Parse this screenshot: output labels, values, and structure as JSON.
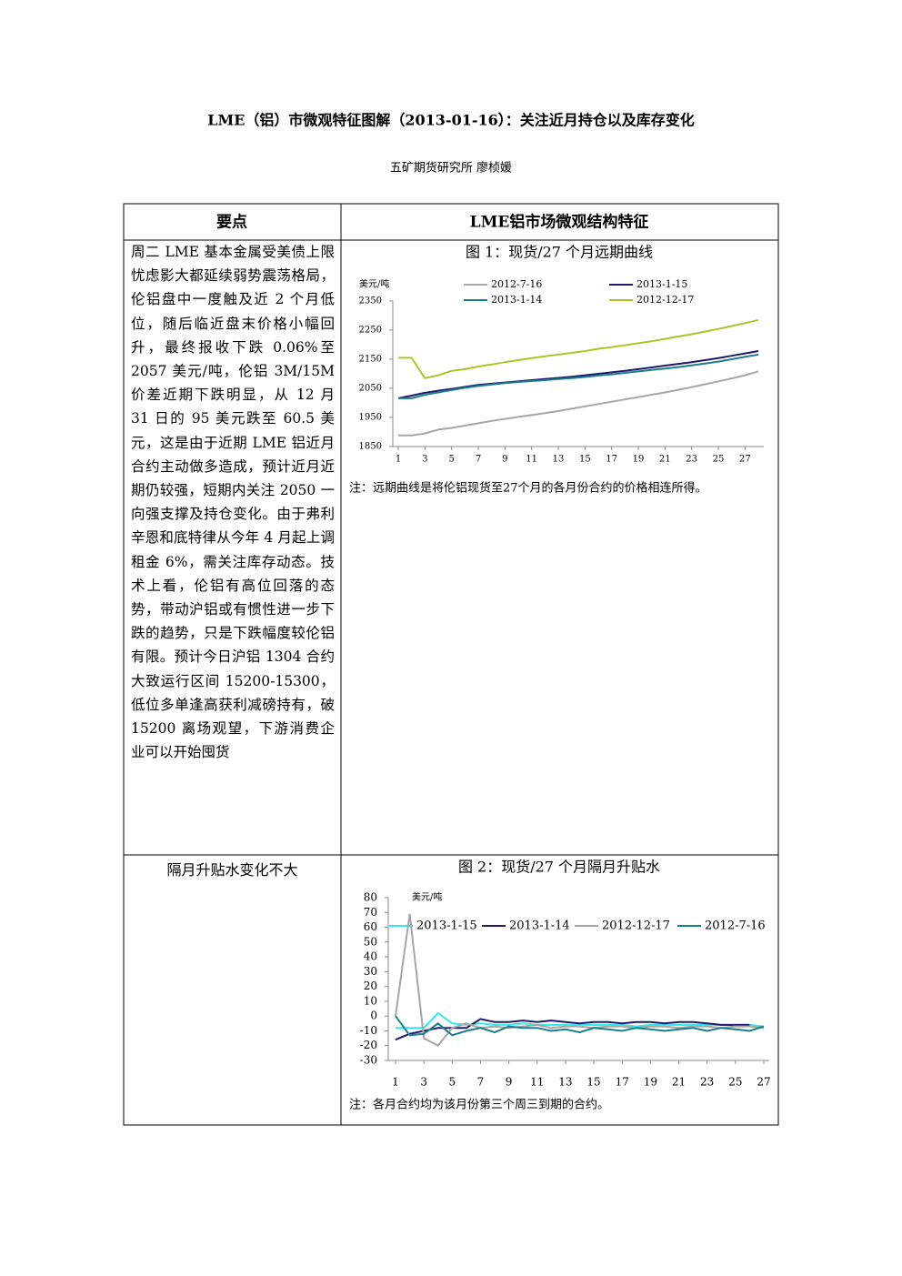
{
  "header": {
    "title": "LME（铝）市微观特征图解（2013-01-16）：关注近月持仓以及库存变化",
    "author": "五矿期货研究所  廖桢媛"
  },
  "table": {
    "headers": [
      "要点",
      "LME铝市场微观结构特征"
    ],
    "rows": [
      [
        "周二 LME 基本金属受美债上限忧虑影大都延续弱势震荡格局，伦铝盘中一度触及近 2 个月低位，随后临近盘末价格小幅回升，最终报收下跌 0.06%至 2057 美元/吨，伦铝 3M/15M 价差近期下跌明显，从 12 月 31 日的 95 美元跌至 60.5 美元，这是由于近期 LME 铝近月合约主动做多造成，预计近月近期仍较强，短期内关注 2050 一向强支撑及持仓变化。由于弗利辛恩和底特律从今年 4 月起上调租金 6%，需关注库存动态。技术上看，伦铝有高位回落的态势，带动沪铝或有惯性进一步下跌的趋势，只是下跌幅度较伦铝有限。预计今日沪铝 1304 合约大致运行区间 15200-15300，低位多单逢高获利减磅持有，破 15200 离场观望，下游消费企业可以开始囤货"
      ],
      [
        "隔月升贴水变化不大"
      ]
    ]
  },
  "chart_data": [
    {
      "type": "line",
      "title": "图 1：现货/27 个月远期曲线",
      "y_label": "美元/吨",
      "note": "注：远期曲线是将伦铝现货至27个月的各月份合约的价格相连所得。",
      "x": [
        1,
        2,
        3,
        4,
        5,
        6,
        7,
        8,
        9,
        10,
        11,
        12,
        13,
        14,
        15,
        16,
        17,
        18,
        19,
        20,
        21,
        22,
        23,
        24,
        25,
        26,
        27,
        28
      ],
      "xlim": [
        1,
        28
      ],
      "xticks": [
        1,
        3,
        5,
        7,
        9,
        11,
        13,
        15,
        17,
        19,
        21,
        23,
        25,
        27
      ],
      "ylim": [
        1850,
        2350
      ],
      "yticks": [
        1850,
        1950,
        2050,
        2150,
        2250,
        2350
      ],
      "series": [
        {
          "name": "2012-7-16",
          "color": "#a6a6a6",
          "values": [
            1888,
            1888,
            1895,
            1908,
            1914,
            1922,
            1930,
            1938,
            1945,
            1952,
            1958,
            1965,
            1972,
            1980,
            1988,
            1996,
            2004,
            2012,
            2020,
            2028,
            2036,
            2045,
            2054,
            2064,
            2074,
            2084,
            2095,
            2108
          ]
        },
        {
          "name": "2013-1-15",
          "color": "#1f1a6e",
          "values": [
            2016,
            2025,
            2035,
            2042,
            2048,
            2055,
            2062,
            2066,
            2070,
            2074,
            2078,
            2082,
            2086,
            2090,
            2095,
            2100,
            2105,
            2110,
            2116,
            2122,
            2128,
            2134,
            2140,
            2147,
            2154,
            2162,
            2170,
            2178
          ]
        },
        {
          "name": "2013-1-14",
          "color": "#1a7f8a",
          "values": [
            2016,
            2016,
            2028,
            2036,
            2044,
            2052,
            2058,
            2063,
            2068,
            2072,
            2075,
            2078,
            2082,
            2085,
            2089,
            2094,
            2098,
            2103,
            2108,
            2113,
            2118,
            2123,
            2129,
            2135,
            2142,
            2150,
            2158,
            2166
          ]
        },
        {
          "name": "2012-12-17",
          "color": "#a8c62a",
          "values": [
            2155,
            2155,
            2085,
            2095,
            2110,
            2116,
            2125,
            2132,
            2140,
            2147,
            2154,
            2160,
            2166,
            2172,
            2178,
            2186,
            2192,
            2198,
            2205,
            2212,
            2220,
            2228,
            2236,
            2245,
            2254,
            2264,
            2274,
            2285
          ]
        }
      ]
    },
    {
      "type": "line",
      "title": "图 2：现货/27 个月隔月升贴水",
      "y_label": "美元/吨",
      "note": "注：各月合约均为该月份第三个周三到期的合约。",
      "x": [
        1,
        2,
        3,
        4,
        5,
        6,
        7,
        8,
        9,
        10,
        11,
        12,
        13,
        14,
        15,
        16,
        17,
        18,
        19,
        20,
        21,
        22,
        23,
        24,
        25,
        26,
        27
      ],
      "xlim": [
        1,
        27
      ],
      "xticks": [
        1,
        3,
        5,
        7,
        9,
        11,
        13,
        15,
        17,
        19,
        21,
        23,
        25,
        27
      ],
      "ylim": [
        -30,
        80
      ],
      "yticks": [
        -30,
        -20,
        -10,
        0,
        10,
        20,
        30,
        40,
        50,
        60,
        70,
        80
      ],
      "series": [
        {
          "name": "2013-1-15",
          "color": "#33e6f0",
          "values": [
            -8,
            -8,
            -8,
            2,
            -5,
            -6,
            -5,
            -6,
            -6,
            -5,
            -6,
            -6,
            -6,
            -6,
            -6,
            -6,
            -6,
            -7,
            -6,
            -6,
            -6,
            -6,
            -6,
            -6,
            -6,
            -6,
            -7
          ]
        },
        {
          "name": "2013-1-14",
          "color": "#1f1a6e",
          "values": [
            -16,
            -12,
            -10,
            -8,
            -8,
            -8,
            -2,
            -4,
            -4,
            -3,
            -4,
            -3,
            -4,
            -5,
            -4,
            -4,
            -5,
            -4,
            -4,
            -5,
            -4,
            -4,
            -5,
            -6,
            -6,
            -6,
            null
          ]
        },
        {
          "name": "2012-12-17",
          "color": "#a6a6a6",
          "values": [
            0,
            69,
            -15,
            -20,
            -8,
            -5,
            -8,
            -7,
            -8,
            -7,
            -6,
            -8,
            -7,
            -7,
            -8,
            -7,
            -7,
            -8,
            -7,
            -7,
            -8,
            -7,
            -7,
            -8,
            -7,
            -7,
            -8
          ]
        },
        {
          "name": "2012-7-16",
          "color": "#1a7f8a",
          "values": [
            0,
            -13,
            -12,
            -5,
            -13,
            -10,
            -8,
            -11,
            -7,
            -8,
            -8,
            -10,
            -9,
            -11,
            -8,
            -9,
            -10,
            -8,
            -9,
            -10,
            -9,
            -8,
            -10,
            -8,
            -9,
            -10,
            -7
          ]
        }
      ]
    }
  ]
}
